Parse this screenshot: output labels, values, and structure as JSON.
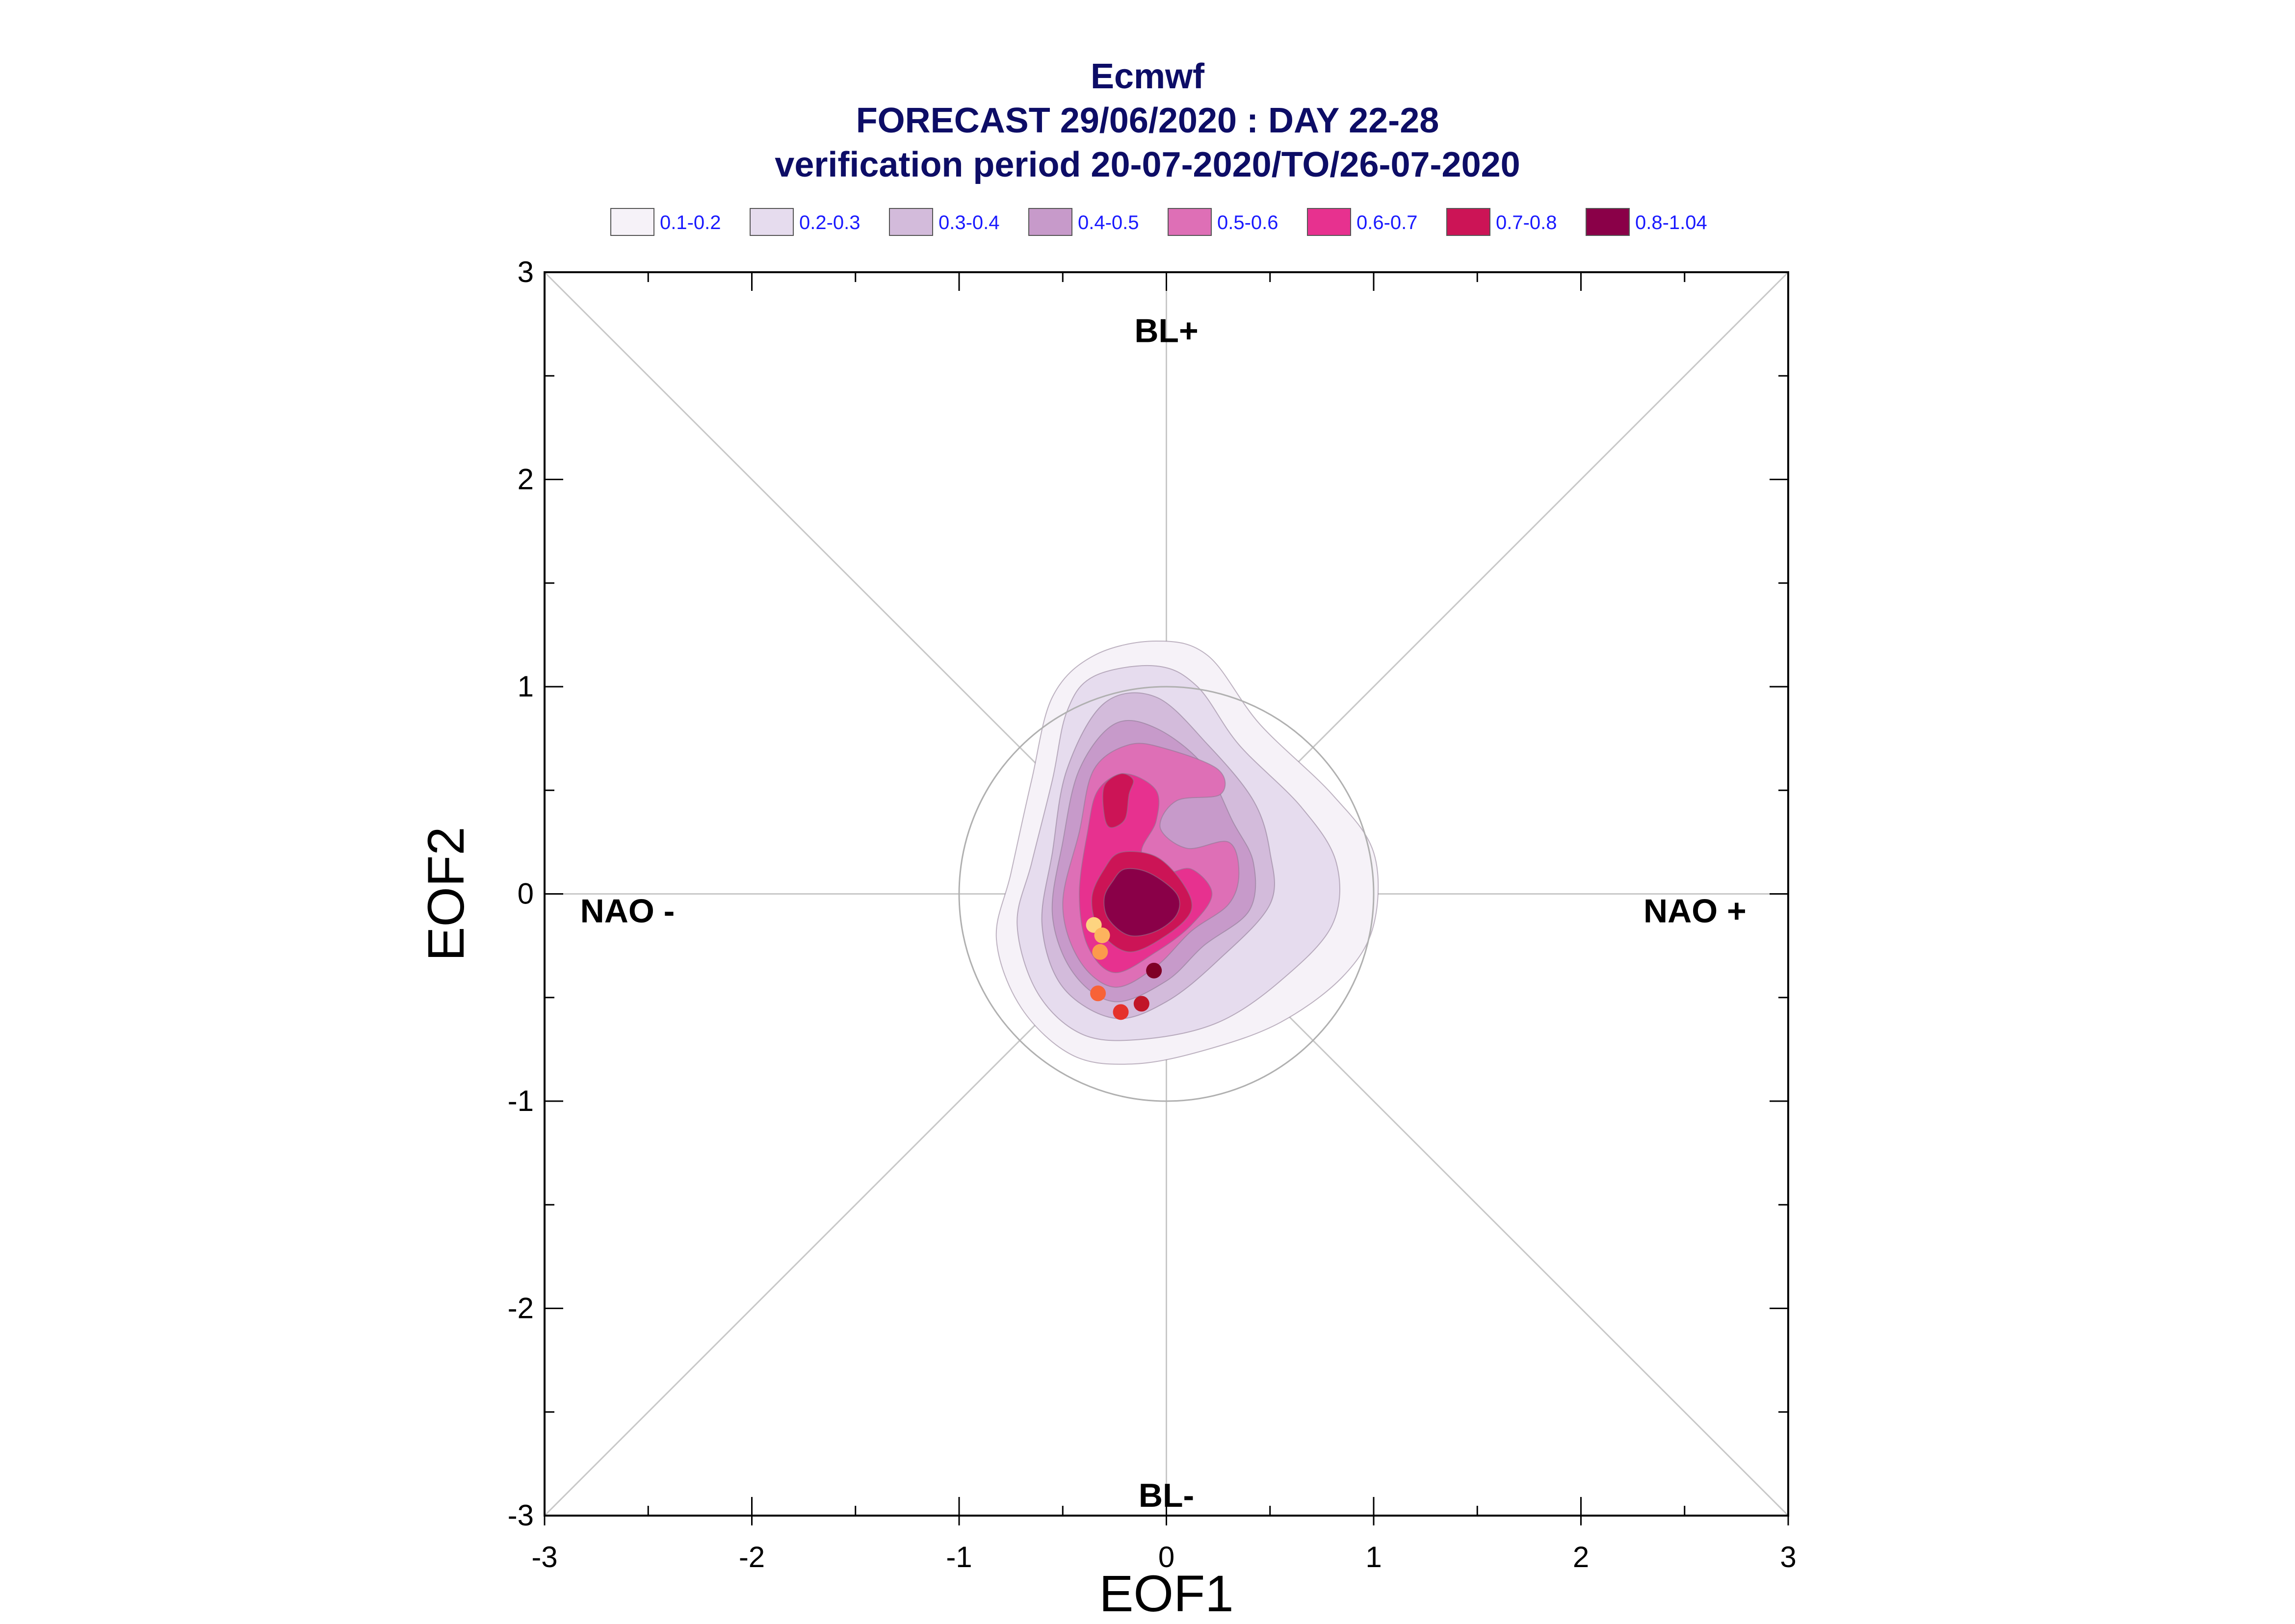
{
  "chart_data": {
    "type": "contour-scatter",
    "title_lines": [
      "Ecmwf",
      "FORECAST 29/06/2020 : DAY 22-28",
      "verification period 20-07-2020/TO/26-07-2020"
    ],
    "xlabel": "EOF1",
    "ylabel": "EOF2",
    "xlim": [
      -3,
      3
    ],
    "ylim": [
      -3,
      3
    ],
    "xticks": [
      -3,
      -2,
      -1,
      0,
      1,
      2,
      3
    ],
    "yticks": [
      -3,
      -2,
      -1,
      0,
      1,
      2,
      3
    ],
    "regime_labels": {
      "top": "BL+",
      "bottom": "BL-",
      "left": "NAO -",
      "right": "NAO +"
    },
    "legend": [
      {
        "label": "0.1-0.2",
        "color": "#f6f2f8"
      },
      {
        "label": "0.2-0.3",
        "color": "#e6dcee"
      },
      {
        "label": "0.3-0.4",
        "color": "#d3bbdb"
      },
      {
        "label": "0.4-0.5",
        "color": "#c79aca"
      },
      {
        "label": "0.5-0.6",
        "color": "#de6fb6"
      },
      {
        "label": "0.6-0.7",
        "color": "#e7318f"
      },
      {
        "label": "0.7-0.8",
        "color": "#cc1456"
      },
      {
        "label": "0.8-1.04",
        "color": "#8a0048"
      }
    ],
    "unit_circle_radius": 1,
    "contours": [
      {
        "level": "0.1-0.2",
        "color": "#f6f2f8",
        "points": [
          [
            -0.35,
            1.15
          ],
          [
            -0.05,
            1.22
          ],
          [
            0.2,
            1.15
          ],
          [
            0.45,
            0.82
          ],
          [
            0.8,
            0.48
          ],
          [
            1.0,
            0.2
          ],
          [
            1.0,
            -0.15
          ],
          [
            0.85,
            -0.4
          ],
          [
            0.55,
            -0.62
          ],
          [
            0.2,
            -0.75
          ],
          [
            -0.15,
            -0.82
          ],
          [
            -0.45,
            -0.78
          ],
          [
            -0.7,
            -0.55
          ],
          [
            -0.82,
            -0.22
          ],
          [
            -0.75,
            0.1
          ],
          [
            -0.65,
            0.55
          ],
          [
            -0.55,
            0.95
          ]
        ]
      },
      {
        "level": "0.2-0.3",
        "color": "#e6dcee",
        "points": [
          [
            -0.35,
            1.05
          ],
          [
            -0.05,
            1.1
          ],
          [
            0.15,
            1.0
          ],
          [
            0.35,
            0.72
          ],
          [
            0.65,
            0.42
          ],
          [
            0.82,
            0.15
          ],
          [
            0.8,
            -0.15
          ],
          [
            0.55,
            -0.42
          ],
          [
            0.25,
            -0.62
          ],
          [
            -0.1,
            -0.7
          ],
          [
            -0.4,
            -0.68
          ],
          [
            -0.62,
            -0.48
          ],
          [
            -0.72,
            -0.15
          ],
          [
            -0.65,
            0.15
          ],
          [
            -0.55,
            0.55
          ],
          [
            -0.48,
            0.88
          ]
        ]
      },
      {
        "level": "0.3-0.4",
        "color": "#d3bbdb",
        "points": [
          [
            -0.3,
            0.92
          ],
          [
            -0.05,
            0.95
          ],
          [
            0.2,
            0.72
          ],
          [
            0.42,
            0.45
          ],
          [
            0.5,
            0.2
          ],
          [
            0.5,
            -0.05
          ],
          [
            0.25,
            -0.32
          ],
          [
            0.0,
            -0.52
          ],
          [
            -0.25,
            -0.6
          ],
          [
            -0.5,
            -0.45
          ],
          [
            -0.6,
            -0.15
          ],
          [
            -0.55,
            0.2
          ],
          [
            -0.48,
            0.6
          ]
        ]
      },
      {
        "level": "0.4-0.5",
        "color": "#c79aca",
        "points": [
          [
            -0.25,
            0.82
          ],
          [
            -0.05,
            0.8
          ],
          [
            0.18,
            0.62
          ],
          [
            0.32,
            0.35
          ],
          [
            0.42,
            0.15
          ],
          [
            0.4,
            -0.08
          ],
          [
            0.18,
            -0.25
          ],
          [
            0.0,
            -0.42
          ],
          [
            -0.25,
            -0.52
          ],
          [
            -0.45,
            -0.38
          ],
          [
            -0.55,
            -0.1
          ],
          [
            -0.5,
            0.25
          ],
          [
            -0.42,
            0.6
          ]
        ]
      },
      {
        "level": "0.5-0.6",
        "color": "#de6fb6",
        "points": [
          [
            -0.18,
            0.72
          ],
          [
            0.0,
            0.7
          ],
          [
            0.25,
            0.6
          ],
          [
            0.26,
            0.48
          ],
          [
            0.05,
            0.45
          ],
          [
            -0.03,
            0.32
          ],
          [
            0.1,
            0.22
          ],
          [
            0.3,
            0.25
          ],
          [
            0.35,
            0.1
          ],
          [
            0.3,
            -0.05
          ],
          [
            0.12,
            -0.18
          ],
          [
            -0.05,
            -0.35
          ],
          [
            -0.25,
            -0.45
          ],
          [
            -0.42,
            -0.32
          ],
          [
            -0.5,
            -0.05
          ],
          [
            -0.42,
            0.3
          ],
          [
            -0.35,
            0.6
          ]
        ]
      },
      {
        "level": "0.6-0.7",
        "color": "#e7318f",
        "points": [
          [
            -0.2,
            0.58
          ],
          [
            -0.05,
            0.5
          ],
          [
            -0.05,
            0.35
          ],
          [
            -0.12,
            0.2
          ],
          [
            -0.02,
            0.1
          ],
          [
            0.12,
            0.12
          ],
          [
            0.22,
            0.0
          ],
          [
            0.12,
            -0.15
          ],
          [
            -0.05,
            -0.28
          ],
          [
            -0.25,
            -0.38
          ],
          [
            -0.38,
            -0.25
          ],
          [
            -0.42,
            0.0
          ],
          [
            -0.38,
            0.3
          ],
          [
            -0.33,
            0.5
          ]
        ]
      },
      {
        "level": "0.7-0.8",
        "color": "#cc1456",
        "points": [
          [
            -0.22,
            0.2
          ],
          [
            -0.05,
            0.18
          ],
          [
            0.08,
            0.05
          ],
          [
            0.12,
            -0.08
          ],
          [
            0.0,
            -0.2
          ],
          [
            -0.18,
            -0.28
          ],
          [
            -0.32,
            -0.18
          ],
          [
            -0.36,
            -0.02
          ],
          [
            -0.3,
            0.12
          ]
        ]
      },
      {
        "level": "0.7-0.8",
        "color": "#cc1456",
        "points": [
          [
            -0.18,
            0.48
          ],
          [
            -0.16,
            0.55
          ],
          [
            -0.22,
            0.58
          ],
          [
            -0.3,
            0.52
          ],
          [
            -0.3,
            0.38
          ],
          [
            -0.27,
            0.32
          ],
          [
            -0.2,
            0.36
          ]
        ]
      },
      {
        "level": "0.8-1.04",
        "color": "#8a0048",
        "points": [
          [
            -0.2,
            0.12
          ],
          [
            -0.08,
            0.1
          ],
          [
            0.05,
            0.0
          ],
          [
            0.05,
            -0.1
          ],
          [
            -0.05,
            -0.18
          ],
          [
            -0.18,
            -0.2
          ],
          [
            -0.28,
            -0.12
          ],
          [
            -0.3,
            -0.02
          ],
          [
            -0.26,
            0.06
          ]
        ]
      }
    ],
    "points": [
      {
        "x": -0.35,
        "y": -0.15,
        "color": "#fdd480"
      },
      {
        "x": -0.31,
        "y": -0.2,
        "color": "#fdb35e"
      },
      {
        "x": -0.32,
        "y": -0.28,
        "color": "#fc9a4c"
      },
      {
        "x": -0.33,
        "y": -0.48,
        "color": "#f86237"
      },
      {
        "x": -0.22,
        "y": -0.57,
        "color": "#e5322b"
      },
      {
        "x": -0.12,
        "y": -0.53,
        "color": "#c11628"
      },
      {
        "x": -0.06,
        "y": -0.37,
        "color": "#7f0026"
      }
    ]
  }
}
